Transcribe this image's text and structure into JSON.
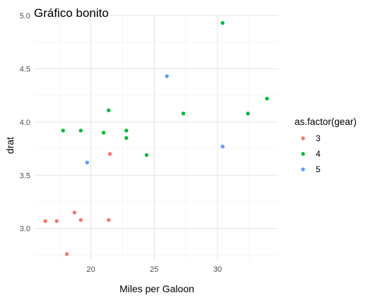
{
  "chart_data": {
    "type": "scatter",
    "title": "Gráfico bonito",
    "xlabel": "Miles per Galoon",
    "ylabel": "drat",
    "xlim": [
      15.5,
      34.8
    ],
    "ylim": [
      2.7,
      5.0
    ],
    "x_ticks": [
      20,
      25,
      30
    ],
    "y_ticks": [
      3.0,
      3.5,
      4.0,
      4.5,
      5.0
    ],
    "x_tick_labels": [
      "20",
      "25",
      "30"
    ],
    "y_tick_labels": [
      "3.0",
      "3.5",
      "4.0",
      "4.5",
      "5.0"
    ],
    "grid": true,
    "legend": {
      "title": "as.factor(gear)",
      "position": "right",
      "entries": [
        {
          "label": "3",
          "color": "#F8766D"
        },
        {
          "label": "4",
          "color": "#00BA38"
        },
        {
          "label": "5",
          "color": "#619CFF"
        }
      ]
    },
    "series": [
      {
        "name": "3",
        "color": "#F8766D",
        "points": [
          {
            "x": 16.4,
            "y": 3.07
          },
          {
            "x": 17.3,
            "y": 3.07
          },
          {
            "x": 18.7,
            "y": 3.15
          },
          {
            "x": 19.2,
            "y": 3.08
          },
          {
            "x": 18.1,
            "y": 2.76
          },
          {
            "x": 21.5,
            "y": 3.7
          },
          {
            "x": 21.4,
            "y": 3.08
          }
        ]
      },
      {
        "name": "4",
        "color": "#00BA38",
        "points": [
          {
            "x": 17.8,
            "y": 3.92
          },
          {
            "x": 19.2,
            "y": 3.92
          },
          {
            "x": 21.0,
            "y": 3.9
          },
          {
            "x": 21.4,
            "y": 4.11
          },
          {
            "x": 22.8,
            "y": 3.92
          },
          {
            "x": 22.8,
            "y": 3.85
          },
          {
            "x": 24.4,
            "y": 3.69
          },
          {
            "x": 27.3,
            "y": 4.08
          },
          {
            "x": 30.4,
            "y": 4.93
          },
          {
            "x": 32.4,
            "y": 4.08
          },
          {
            "x": 33.9,
            "y": 4.22
          }
        ]
      },
      {
        "name": "5",
        "color": "#619CFF",
        "points": [
          {
            "x": 19.7,
            "y": 3.62
          },
          {
            "x": 26.0,
            "y": 4.43
          },
          {
            "x": 30.4,
            "y": 3.77
          }
        ]
      }
    ]
  }
}
